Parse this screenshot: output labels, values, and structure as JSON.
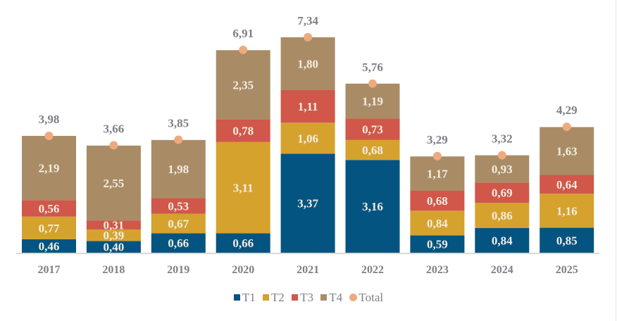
{
  "chart_data": {
    "type": "bar",
    "stacked": true,
    "title": "",
    "xlabel": "",
    "ylabel": "",
    "ylim": [
      0,
      8
    ],
    "grid": false,
    "legend_position": "bottom",
    "categories": [
      "2017",
      "2018",
      "2019",
      "2020",
      "2021",
      "2022",
      "2023",
      "2024",
      "2025"
    ],
    "series": [
      {
        "name": "T1",
        "color": "#045482",
        "values": [
          0.46,
          0.4,
          0.66,
          0.66,
          3.37,
          3.16,
          0.59,
          0.84,
          0.85
        ],
        "labels": [
          "0,46",
          "0,40",
          "0,66",
          "0,66",
          "3,37",
          "3,16",
          "0,59",
          "0,84",
          "0,85"
        ]
      },
      {
        "name": "T2",
        "color": "#d5a22e",
        "values": [
          0.77,
          0.39,
          0.67,
          3.11,
          1.06,
          0.68,
          0.84,
          0.86,
          1.16
        ],
        "labels": [
          "0,77",
          "0,39",
          "0,67",
          "3,11",
          "1,06",
          "0,68",
          "0,84",
          "0,86",
          "1,16"
        ]
      },
      {
        "name": "T3",
        "color": "#d0574a",
        "values": [
          0.56,
          0.31,
          0.53,
          0.78,
          1.11,
          0.73,
          0.68,
          0.69,
          0.64
        ],
        "labels": [
          "0,56",
          "0,31",
          "0,53",
          "0,78",
          "1,11",
          "0,73",
          "0,68",
          "0,69",
          "0,64"
        ]
      },
      {
        "name": "T4",
        "color": "#a98c66",
        "values": [
          2.19,
          2.55,
          1.98,
          2.35,
          1.8,
          1.19,
          1.17,
          0.93,
          1.63
        ],
        "labels": [
          "2,19",
          "2,55",
          "1,98",
          "2,35",
          "1,80",
          "1,19",
          "1,17",
          "0,93",
          "1,63"
        ]
      }
    ],
    "total": {
      "name": "Total",
      "color": "#eeaa7f",
      "values": [
        3.98,
        3.66,
        3.85,
        6.91,
        7.34,
        5.76,
        3.29,
        3.32,
        4.29
      ],
      "labels": [
        "3,98",
        "3,66",
        "3,85",
        "6,91",
        "7,34",
        "5,76",
        "3,29",
        "3,32",
        "4,29"
      ]
    },
    "axis_color": "#d9d9d9"
  }
}
